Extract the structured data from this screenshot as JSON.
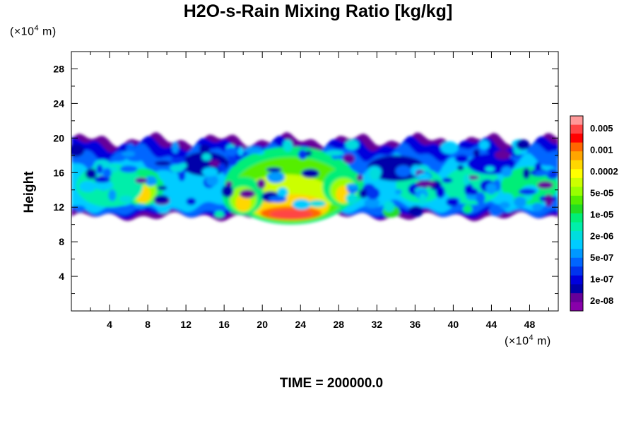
{
  "chart_data": {
    "type": "heatmap",
    "title": "H2O-s-Rain Mixing Ratio [kg/kg]",
    "xlabel": "",
    "ylabel": "Height",
    "x_unit_prefix": "(×10",
    "x_unit_exp": "4",
    "x_unit_suffix": " m)",
    "y_unit_prefix": "(×10",
    "y_unit_exp": "4",
    "y_unit_suffix": " m)",
    "xlim": [
      0,
      51
    ],
    "ylim": [
      0,
      30
    ],
    "x_ticks": [
      4,
      8,
      12,
      16,
      20,
      24,
      28,
      32,
      36,
      40,
      44,
      48
    ],
    "y_ticks": [
      4,
      8,
      12,
      16,
      20,
      24,
      28
    ],
    "grid": false,
    "colorbar": {
      "labels": [
        "0.005",
        "0.001",
        "0.0002",
        "5e-05",
        "1e-05",
        "2e-06",
        "5e-07",
        "1e-07",
        "2e-08"
      ],
      "colors_top_to_bottom": [
        "#ff9999",
        "#ff4444",
        "#ff0000",
        "#ff6600",
        "#ffa500",
        "#ffd700",
        "#ffff00",
        "#ccff00",
        "#99ff00",
        "#55ee00",
        "#22dd22",
        "#00ee77",
        "#00eeaa",
        "#00dddd",
        "#00ccff",
        "#0099ff",
        "#0066ff",
        "#0033ee",
        "#0000dd",
        "#0000aa",
        "#660099",
        "#8800aa"
      ]
    },
    "field": {
      "band_bottom_km": 11.5,
      "band_top_km": 19.5,
      "max_region": {
        "x": [
          20,
          26
        ],
        "y": [
          10.5,
          12
        ]
      },
      "secondary_maxima": [
        {
          "x": 7.5,
          "y": 13.5
        },
        {
          "x": 18,
          "y": 12.5
        },
        {
          "x": 28.5,
          "y": 13.5
        }
      ]
    },
    "footer": "TIME = 200000.0"
  }
}
